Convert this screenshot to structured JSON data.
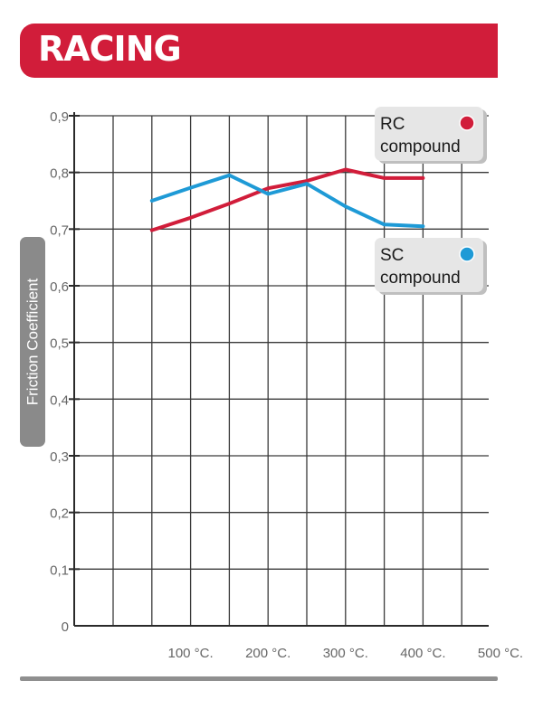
{
  "header": {
    "title": "RACING"
  },
  "chart_data": {
    "type": "line",
    "ylabel": "Friction Coefficient",
    "y_ticks": [
      "0",
      "0,1",
      "0,2",
      "0,3",
      "0,4",
      "0,5",
      "0,6",
      "0,7",
      "0,8",
      "0,9"
    ],
    "ylim": [
      0,
      0.9
    ],
    "x_ticks": [
      100,
      200,
      300,
      400,
      500
    ],
    "x_tick_labels": [
      "100 °C.",
      "200 °C.",
      "300 °C.",
      "400 °C.",
      "500 °C."
    ],
    "xlim": [
      0,
      500
    ],
    "grid": true,
    "legend_placement": "right",
    "series": [
      {
        "name": "RC compound",
        "legend_line1": "RC",
        "legend_line2": "compound",
        "color": "#d11d3a",
        "points": [
          [
            50,
            0.698
          ],
          [
            100,
            0.72
          ],
          [
            150,
            0.745
          ],
          [
            200,
            0.772
          ],
          [
            250,
            0.785
          ],
          [
            300,
            0.805
          ],
          [
            350,
            0.79
          ],
          [
            400,
            0.79
          ]
        ]
      },
      {
        "name": "SC compound",
        "legend_line1": "SC",
        "legend_line2": "compound",
        "color": "#1e9ad6",
        "points": [
          [
            50,
            0.75
          ],
          [
            100,
            0.773
          ],
          [
            150,
            0.795
          ],
          [
            200,
            0.762
          ],
          [
            250,
            0.78
          ],
          [
            300,
            0.74
          ],
          [
            350,
            0.708
          ],
          [
            400,
            0.705
          ]
        ]
      }
    ]
  }
}
